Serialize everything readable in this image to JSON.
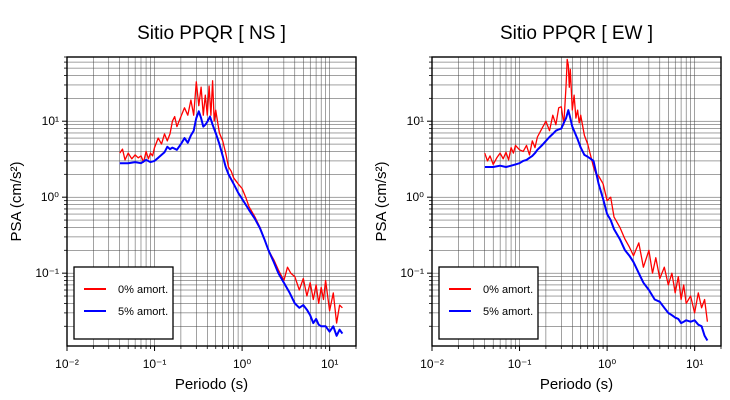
{
  "chart_data": [
    {
      "type": "line",
      "title": "Sitio PPQR [ NS ]",
      "xlabel": "Periodo (s)",
      "ylabel": "PSA (cm/s²)",
      "xscale": "log",
      "yscale": "log",
      "xlim": [
        0.01,
        20
      ],
      "ylim": [
        0.011,
        70
      ],
      "xticks": [
        "10⁻²",
        "10⁻¹",
        "10⁰",
        "10¹"
      ],
      "yticks": [
        "10⁻¹",
        "10⁰",
        "10¹"
      ],
      "grid": true,
      "legend_position": "bottom-left",
      "series": [
        {
          "name": "0% amort.",
          "color": "#ff0000",
          "x": [
            0.04,
            0.043,
            0.046,
            0.05,
            0.055,
            0.06,
            0.065,
            0.07,
            0.075,
            0.08,
            0.085,
            0.09,
            0.095,
            0.1,
            0.11,
            0.12,
            0.13,
            0.14,
            0.15,
            0.16,
            0.17,
            0.18,
            0.2,
            0.22,
            0.24,
            0.26,
            0.28,
            0.3,
            0.32,
            0.34,
            0.36,
            0.38,
            0.4,
            0.42,
            0.44,
            0.46,
            0.48,
            0.5,
            0.55,
            0.6,
            0.65,
            0.7,
            0.75,
            0.8,
            0.9,
            1.0,
            1.1,
            1.2,
            1.4,
            1.6,
            1.8,
            2.0,
            2.3,
            2.6,
            3.0,
            3.3,
            3.6,
            4.0,
            4.5,
            5.0,
            5.5,
            6.0,
            6.5,
            7.0,
            7.5,
            8.0,
            8.5,
            9.0,
            10,
            11,
            12,
            13,
            14
          ],
          "y": [
            3.8,
            4.3,
            3.1,
            3.8,
            3.2,
            3.6,
            3.3,
            3.5,
            2.9,
            4.0,
            3.2,
            3.8,
            3.5,
            4.5,
            6.0,
            5.0,
            6.8,
            5.5,
            6.8,
            10.0,
            11.5,
            8.5,
            11.5,
            15.0,
            12.0,
            19.0,
            12.0,
            33.0,
            16.0,
            28.0,
            12.0,
            22.0,
            12.0,
            29.0,
            12.0,
            34.0,
            10.0,
            14.0,
            7.0,
            5.5,
            3.8,
            2.5,
            2.2,
            1.8,
            1.5,
            1.3,
            1.0,
            0.75,
            0.55,
            0.4,
            0.28,
            0.2,
            0.15,
            0.11,
            0.08,
            0.12,
            0.1,
            0.09,
            0.06,
            0.085,
            0.05,
            0.075,
            0.045,
            0.07,
            0.04,
            0.065,
            0.045,
            0.08,
            0.032,
            0.055,
            0.022,
            0.038,
            0.035
          ]
        },
        {
          "name": "5% amort.",
          "color": "#0000ff",
          "x": [
            0.04,
            0.05,
            0.06,
            0.07,
            0.08,
            0.09,
            0.1,
            0.11,
            0.12,
            0.13,
            0.14,
            0.15,
            0.16,
            0.18,
            0.2,
            0.22,
            0.24,
            0.26,
            0.28,
            0.3,
            0.32,
            0.34,
            0.36,
            0.38,
            0.4,
            0.43,
            0.46,
            0.5,
            0.55,
            0.6,
            0.65,
            0.7,
            0.8,
            0.9,
            1.0,
            1.1,
            1.2,
            1.4,
            1.6,
            1.8,
            2.0,
            2.3,
            2.6,
            3.0,
            3.5,
            4.0,
            4.5,
            5.0,
            5.5,
            6.0,
            6.5,
            7.0,
            7.5,
            8.0,
            9.0,
            10,
            11,
            12,
            13,
            14
          ],
          "y": [
            2.8,
            2.8,
            2.9,
            2.8,
            3.1,
            2.9,
            3.0,
            3.3,
            3.6,
            3.9,
            4.6,
            4.3,
            4.5,
            4.2,
            5.0,
            6.0,
            5.2,
            6.5,
            7.5,
            11.0,
            13.5,
            11.0,
            8.5,
            9.0,
            9.8,
            11.5,
            9.0,
            7.0,
            5.0,
            3.5,
            2.5,
            2.0,
            1.5,
            1.15,
            0.95,
            0.8,
            0.68,
            0.52,
            0.39,
            0.28,
            0.2,
            0.14,
            0.1,
            0.075,
            0.055,
            0.04,
            0.035,
            0.038,
            0.033,
            0.028,
            0.022,
            0.025,
            0.021,
            0.02,
            0.02,
            0.017,
            0.02,
            0.015,
            0.018,
            0.016
          ]
        }
      ]
    },
    {
      "type": "line",
      "title": "Sitio PPQR [ EW ]",
      "xlabel": "Periodo (s)",
      "ylabel": "PSA (cm/s²)",
      "xscale": "log",
      "yscale": "log",
      "xlim": [
        0.01,
        20
      ],
      "ylim": [
        0.011,
        70
      ],
      "xticks": [
        "10⁻²",
        "10⁻¹",
        "10⁰",
        "10¹"
      ],
      "yticks": [
        "10⁻¹",
        "10⁰",
        "10¹"
      ],
      "grid": true,
      "legend_position": "bottom-left",
      "series": [
        {
          "name": "0% amort.",
          "color": "#ff0000",
          "x": [
            0.04,
            0.043,
            0.046,
            0.05,
            0.055,
            0.06,
            0.065,
            0.07,
            0.075,
            0.08,
            0.085,
            0.09,
            0.1,
            0.11,
            0.12,
            0.13,
            0.14,
            0.15,
            0.16,
            0.18,
            0.2,
            0.22,
            0.24,
            0.26,
            0.28,
            0.3,
            0.32,
            0.34,
            0.35,
            0.36,
            0.37,
            0.38,
            0.4,
            0.42,
            0.44,
            0.46,
            0.48,
            0.5,
            0.55,
            0.6,
            0.65,
            0.7,
            0.75,
            0.8,
            0.9,
            1.0,
            1.1,
            1.2,
            1.4,
            1.6,
            1.8,
            2.0,
            2.3,
            2.6,
            3.0,
            3.3,
            3.6,
            4.0,
            4.5,
            5.0,
            5.5,
            6.0,
            6.5,
            7.0,
            7.5,
            8.0,
            9.0,
            10,
            11,
            12,
            13,
            14
          ],
          "y": [
            3.8,
            3.0,
            3.5,
            2.7,
            3.3,
            3.8,
            3.2,
            3.9,
            3.1,
            4.5,
            3.8,
            4.8,
            4.2,
            4.0,
            4.8,
            3.6,
            5.5,
            4.5,
            6.2,
            8.0,
            10.0,
            7.5,
            12.0,
            9.0,
            15.0,
            15.5,
            9.0,
            30.0,
            65.0,
            55.0,
            28.0,
            48.0,
            14.0,
            22.0,
            11.0,
            14.0,
            9.5,
            12.0,
            6.5,
            5.0,
            3.5,
            2.5,
            2.0,
            1.9,
            1.5,
            0.9,
            1.0,
            0.55,
            0.4,
            0.28,
            0.22,
            0.17,
            0.25,
            0.12,
            0.2,
            0.1,
            0.16,
            0.085,
            0.12,
            0.07,
            0.1,
            0.055,
            0.09,
            0.045,
            0.07,
            0.04,
            0.05,
            0.03,
            0.055,
            0.035,
            0.045,
            0.023
          ]
        },
        {
          "name": "5% amort.",
          "color": "#0000ff",
          "x": [
            0.04,
            0.05,
            0.06,
            0.07,
            0.08,
            0.09,
            0.1,
            0.11,
            0.12,
            0.13,
            0.14,
            0.15,
            0.16,
            0.18,
            0.2,
            0.22,
            0.24,
            0.26,
            0.28,
            0.3,
            0.32,
            0.34,
            0.36,
            0.38,
            0.4,
            0.43,
            0.46,
            0.5,
            0.55,
            0.6,
            0.65,
            0.7,
            0.8,
            0.9,
            1.0,
            1.1,
            1.2,
            1.4,
            1.6,
            1.8,
            2.0,
            2.3,
            2.6,
            3.0,
            3.5,
            4.0,
            4.5,
            5.0,
            5.5,
            6.0,
            6.5,
            7.0,
            7.5,
            8.0,
            9.0,
            10,
            11,
            12,
            13,
            14
          ],
          "y": [
            2.5,
            2.5,
            2.6,
            2.5,
            2.6,
            2.7,
            2.8,
            3.0,
            3.1,
            3.3,
            3.5,
            3.8,
            4.2,
            4.8,
            5.5,
            6.2,
            6.8,
            7.5,
            7.8,
            8.0,
            9.5,
            11.0,
            14.0,
            11.0,
            8.5,
            7.0,
            5.8,
            4.5,
            3.6,
            3.4,
            3.2,
            3.0,
            1.5,
            0.95,
            0.6,
            0.5,
            0.38,
            0.28,
            0.2,
            0.17,
            0.14,
            0.1,
            0.075,
            0.06,
            0.045,
            0.042,
            0.035,
            0.03,
            0.028,
            0.026,
            0.025,
            0.022,
            0.023,
            0.024,
            0.023,
            0.024,
            0.021,
            0.02,
            0.015,
            0.013
          ]
        }
      ]
    }
  ]
}
